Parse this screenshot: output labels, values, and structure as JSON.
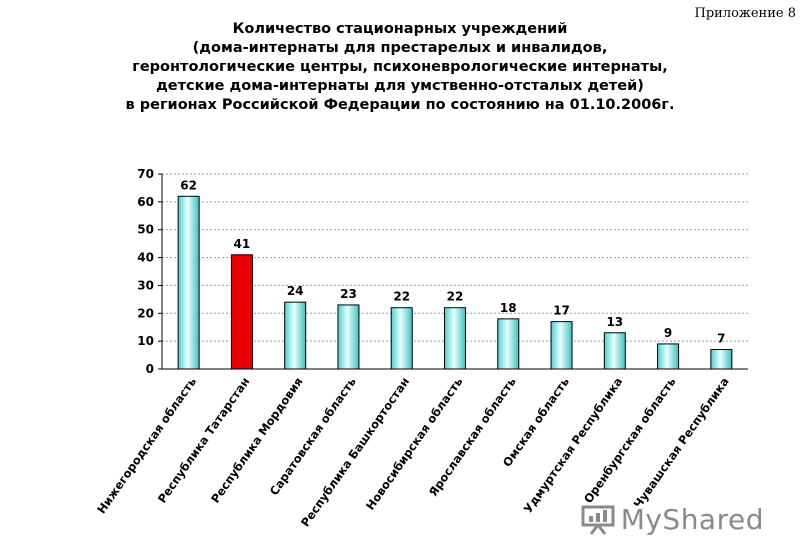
{
  "appendix": "Приложение 8",
  "title_lines": [
    "Количество стационарных учреждений",
    "(дома-интернаты для престарелых и инвалидов,",
    "геронтологические центры, психоневрологические интернаты,",
    "детские дома-интернаты для умственно-отсталых детей)",
    "в регионах Российской Федерации по состоянию на 01.10.2006г."
  ],
  "watermark": "MyShared",
  "chart_data": {
    "type": "bar",
    "categories": [
      "Нижегородская область",
      "Республика Татарстан",
      "Республика Мордовия",
      "Саратовская область",
      "Республика Башкортостан",
      "Новосибирская область",
      "Ярославская область",
      "Омская область",
      "Удмуртская Республика",
      "Оренбургская область",
      "Чувашская Республика"
    ],
    "values": [
      62,
      41,
      24,
      23,
      22,
      22,
      18,
      17,
      13,
      9,
      7
    ],
    "highlight_index": 1,
    "ylim": [
      0,
      70
    ],
    "yticks": [
      0,
      10,
      20,
      30,
      40,
      50,
      60,
      70
    ],
    "grid": true,
    "colors": {
      "bar": "#7fe3e3",
      "bar_light": "#e6ffff",
      "highlight": "#e60000",
      "grid": "#9a9a9a"
    }
  }
}
